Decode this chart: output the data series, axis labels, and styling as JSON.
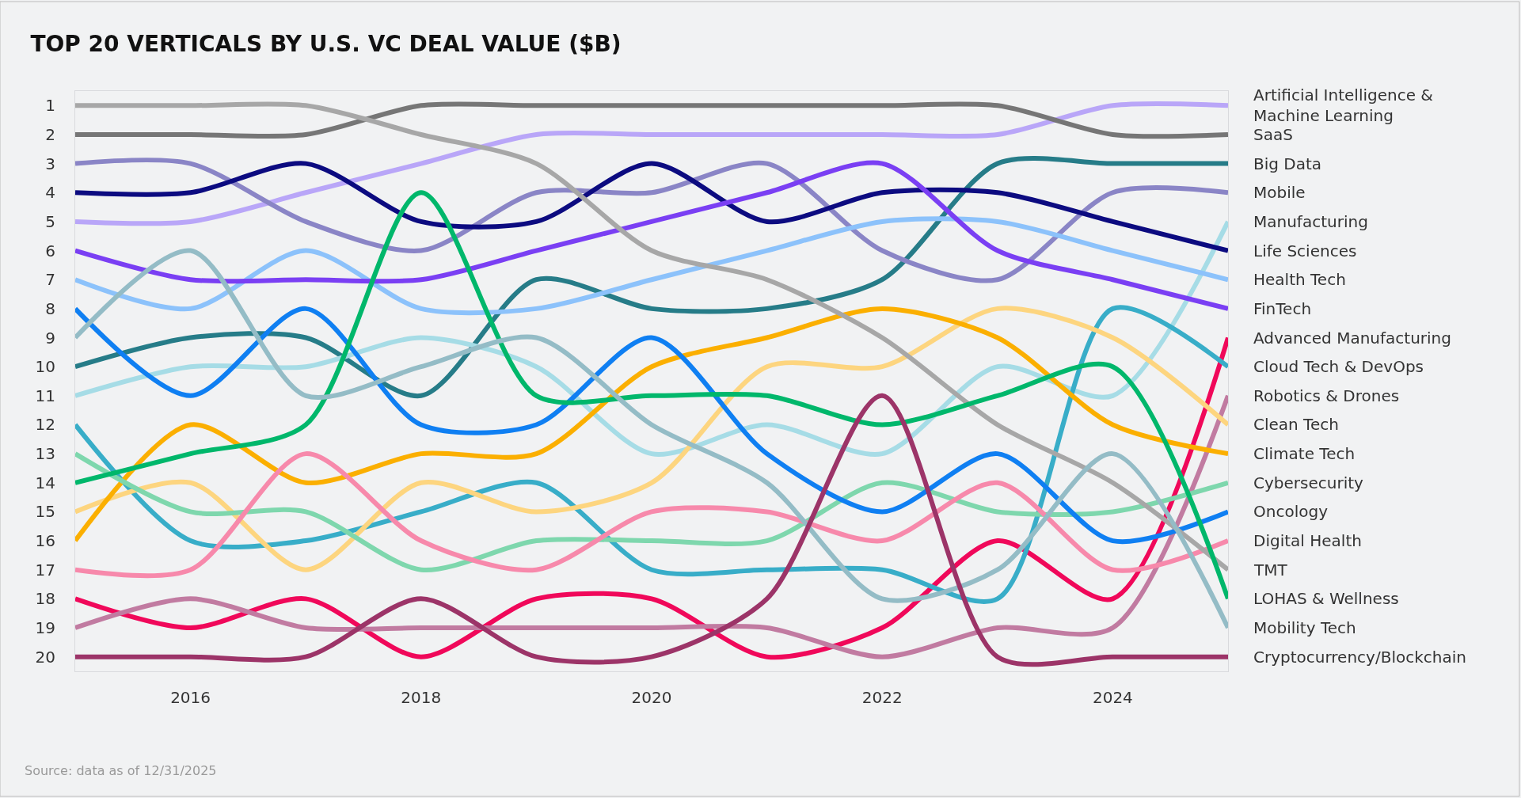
{
  "chart_data": {
    "type": "line",
    "title": "TOP 20 VERTICALS BY U.S. VC DEAL VALUE ($B)",
    "x": [
      2015,
      2016,
      2017,
      2018,
      2019,
      2020,
      2021,
      2022,
      2023,
      2024,
      2025
    ],
    "xlim": [
      2015,
      2025
    ],
    "xticks": [
      2016,
      2018,
      2020,
      2022,
      2024
    ],
    "ylim": [
      20.5,
      0.5
    ],
    "yticks": [
      1,
      2,
      3,
      4,
      5,
      6,
      7,
      8,
      9,
      10,
      11,
      12,
      13,
      14,
      15,
      16,
      17,
      18,
      19,
      20
    ],
    "grid": false,
    "legend": false,
    "marker": "none",
    "line_style": "solid",
    "annotations": [
      "Source: data as of 12/31/2025"
    ],
    "series": [
      {
        "name": "Artificial Intelligence &\nMachine Learning",
        "color": "#b9a6f8",
        "values": [
          5,
          5,
          4,
          3,
          2,
          2,
          2,
          2,
          2,
          1,
          1
        ]
      },
      {
        "name": "SaaS",
        "color": "#767676",
        "values": [
          2,
          2,
          2,
          1,
          1,
          1,
          1,
          1,
          1,
          2,
          2
        ]
      },
      {
        "name": "Big Data",
        "color": "#267c88",
        "values": [
          10,
          9,
          9,
          11,
          7,
          8,
          8,
          7,
          3,
          3,
          3
        ]
      },
      {
        "name": "Mobile",
        "color": "#8a85c6",
        "values": [
          3,
          3,
          5,
          6,
          4,
          4,
          3,
          6,
          7,
          4,
          4
        ]
      },
      {
        "name": "Manufacturing",
        "color": "#a6dce6",
        "values": [
          11,
          10,
          10,
          9,
          10,
          13,
          12,
          13,
          10,
          11,
          5
        ]
      },
      {
        "name": "Life Sciences",
        "color": "#0c0b80",
        "values": [
          4,
          4,
          3,
          5,
          5,
          3,
          5,
          4,
          4,
          5,
          6
        ]
      },
      {
        "name": "Health Tech",
        "color": "#8cc2fb",
        "values": [
          7,
          8,
          6,
          8,
          8,
          7,
          6,
          5,
          5,
          6,
          7
        ]
      },
      {
        "name": "FinTech",
        "color": "#7a3ff3",
        "values": [
          6,
          7,
          7,
          7,
          6,
          5,
          4,
          3,
          6,
          7,
          8
        ]
      },
      {
        "name": "Advanced Manufacturing",
        "color": "#f0085a",
        "values": [
          18,
          19,
          18,
          20,
          18,
          18,
          20,
          19,
          16,
          18,
          9
        ]
      },
      {
        "name": "Cloud Tech & DevOps",
        "color": "#38adc8",
        "values": [
          12,
          16,
          16,
          15,
          14,
          17,
          17,
          17,
          18,
          8,
          10
        ]
      },
      {
        "name": "Robotics & Drones",
        "color": "#c17ba1",
        "values": [
          19,
          18,
          19,
          19,
          19,
          19,
          19,
          20,
          19,
          19,
          11
        ]
      },
      {
        "name": "Clean Tech",
        "color": "#fdd57f",
        "values": [
          15,
          14,
          17,
          14,
          15,
          14,
          10,
          10,
          8,
          9,
          12
        ]
      },
      {
        "name": "Climate Tech",
        "color": "#fbaf00",
        "values": [
          16,
          12,
          14,
          13,
          13,
          10,
          9,
          8,
          9,
          12,
          13
        ]
      },
      {
        "name": "Cybersecurity",
        "color": "#7ed7ad",
        "values": [
          13,
          15,
          15,
          17,
          16,
          16,
          16,
          14,
          15,
          15,
          14
        ]
      },
      {
        "name": "Oncology",
        "color": "#0f7ff2",
        "values": [
          8,
          11,
          8,
          12,
          12,
          9,
          13,
          15,
          13,
          16,
          15
        ]
      },
      {
        "name": "Digital Health",
        "color": "#f789ab",
        "values": [
          17,
          17,
          13,
          16,
          17,
          15,
          15,
          16,
          14,
          17,
          16
        ]
      },
      {
        "name": "TMT",
        "color": "#a7a7a7",
        "values": [
          1,
          1,
          1,
          2,
          3,
          6,
          7,
          9,
          12,
          14,
          17
        ]
      },
      {
        "name": "LOHAS & Wellness",
        "color": "#00b76b",
        "values": [
          14,
          13,
          12,
          4,
          11,
          11,
          11,
          12,
          11,
          10,
          18
        ]
      },
      {
        "name": "Mobility Tech",
        "color": "#94bcc6",
        "values": [
          9,
          6,
          11,
          10,
          9,
          12,
          14,
          18,
          17,
          13,
          19
        ]
      },
      {
        "name": "Cryptocurrency/Blockchain",
        "color": "#9c3468",
        "values": [
          20,
          20,
          20,
          18,
          20,
          20,
          18,
          11,
          20,
          20,
          20
        ]
      }
    ]
  }
}
